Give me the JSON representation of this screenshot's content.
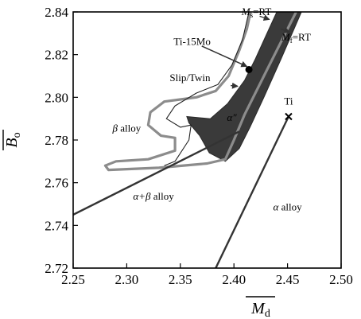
{
  "chart_data": {
    "type": "phase-map",
    "xlabel": "M",
    "xlabel_sub": "d",
    "ylabel": "B",
    "ylabel_sub": "o",
    "xlim": [
      2.25,
      2.5
    ],
    "ylim": [
      2.72,
      2.84
    ],
    "x_ticks": [
      "2.25",
      "2.30",
      "2.35",
      "2.40",
      "2.45",
      "2.50"
    ],
    "y_ticks": [
      "2.72",
      "2.74",
      "2.76",
      "2.78",
      "2.80",
      "2.82",
      "2.84"
    ],
    "grid": false,
    "regions": [
      {
        "label": "β alloy",
        "x": 2.3,
        "y": 2.784
      },
      {
        "label": "α″",
        "x": 2.398,
        "y": 2.789
      },
      {
        "label": "α+β alloy",
        "x": 2.325,
        "y": 2.752
      },
      {
        "label": "α alloy",
        "x": 2.45,
        "y": 2.747
      }
    ],
    "annotations": [
      {
        "label": "Ti-15Mo",
        "x": 2.361,
        "y": 2.8245
      },
      {
        "label": "Slip/Twin",
        "x": 2.359,
        "y": 2.8075
      },
      {
        "label": "Ms=RT",
        "x": 2.421,
        "y": 2.8385
      },
      {
        "label": "Mf=RT",
        "x": 2.458,
        "y": 2.8265
      },
      {
        "label": "Ti",
        "x": 2.451,
        "y": 2.7965
      }
    ],
    "points": [
      {
        "name": "Ti-15Mo",
        "x": 2.414,
        "y": 2.813,
        "marker": "dot"
      },
      {
        "name": "Ti",
        "x": 2.451,
        "y": 2.791,
        "marker": "x"
      }
    ],
    "boundaries": {
      "alpha_beta_line": [
        [
          2.25,
          2.745
        ],
        [
          2.405,
          2.784
        ]
      ],
      "alpha_line": [
        [
          2.383,
          2.72
        ],
        [
          2.451,
          2.791
        ]
      ],
      "beta_outer": [
        [
          2.4155,
          2.84
        ],
        [
          2.412,
          2.832
        ],
        [
          2.405,
          2.822
        ],
        [
          2.395,
          2.81
        ],
        [
          2.383,
          2.803
        ],
        [
          2.365,
          2.8
        ],
        [
          2.35,
          2.799
        ],
        [
          2.335,
          2.798
        ],
        [
          2.322,
          2.793
        ],
        [
          2.32,
          2.787
        ],
        [
          2.332,
          2.782
        ],
        [
          2.345,
          2.781
        ],
        [
          2.345,
          2.775
        ],
        [
          2.32,
          2.771
        ],
        [
          2.29,
          2.77
        ],
        [
          2.28,
          2.768
        ],
        [
          2.283,
          2.766
        ],
        [
          2.33,
          2.767
        ],
        [
          2.375,
          2.769
        ],
        [
          2.392,
          2.771
        ],
        [
          2.4,
          2.78
        ],
        [
          2.41,
          2.792
        ],
        [
          2.43,
          2.812
        ],
        [
          2.448,
          2.83
        ],
        [
          2.458,
          2.84
        ]
      ],
      "slip_twin": [
        [
          2.414,
          2.84
        ],
        [
          2.408,
          2.827
        ],
        [
          2.398,
          2.815
        ],
        [
          2.385,
          2.806
        ],
        [
          2.365,
          2.802
        ],
        [
          2.345,
          2.796
        ],
        [
          2.337,
          2.79
        ],
        [
          2.35,
          2.786
        ],
        [
          2.36,
          2.787
        ],
        [
          2.358,
          2.78
        ],
        [
          2.345,
          2.77
        ],
        [
          2.335,
          2.768
        ]
      ],
      "alpha_double_prime": [
        [
          2.356,
          2.791
        ],
        [
          2.378,
          2.79
        ],
        [
          2.394,
          2.797
        ],
        [
          2.41,
          2.808
        ],
        [
          2.42,
          2.818
        ],
        [
          2.43,
          2.829
        ],
        [
          2.44,
          2.84
        ],
        [
          2.463,
          2.84
        ],
        [
          2.444,
          2.818
        ],
        [
          2.428,
          2.8
        ],
        [
          2.415,
          2.786
        ],
        [
          2.405,
          2.776
        ],
        [
          2.392,
          2.77
        ],
        [
          2.377,
          2.774
        ],
        [
          2.368,
          2.782
        ],
        [
          2.358,
          2.788
        ]
      ]
    },
    "arrows": [
      {
        "from": [
          2.37,
          2.824
        ],
        "to": [
          2.412,
          2.8145
        ]
      },
      {
        "from": [
          2.424,
          2.838
        ],
        "to": [
          2.433,
          2.8365
        ]
      },
      {
        "from": [
          2.444,
          2.832
        ],
        "to": [
          2.452,
          2.8305
        ]
      },
      {
        "from": [
          2.397,
          2.8055
        ],
        "to": [
          2.4035,
          2.8052
        ]
      }
    ]
  }
}
